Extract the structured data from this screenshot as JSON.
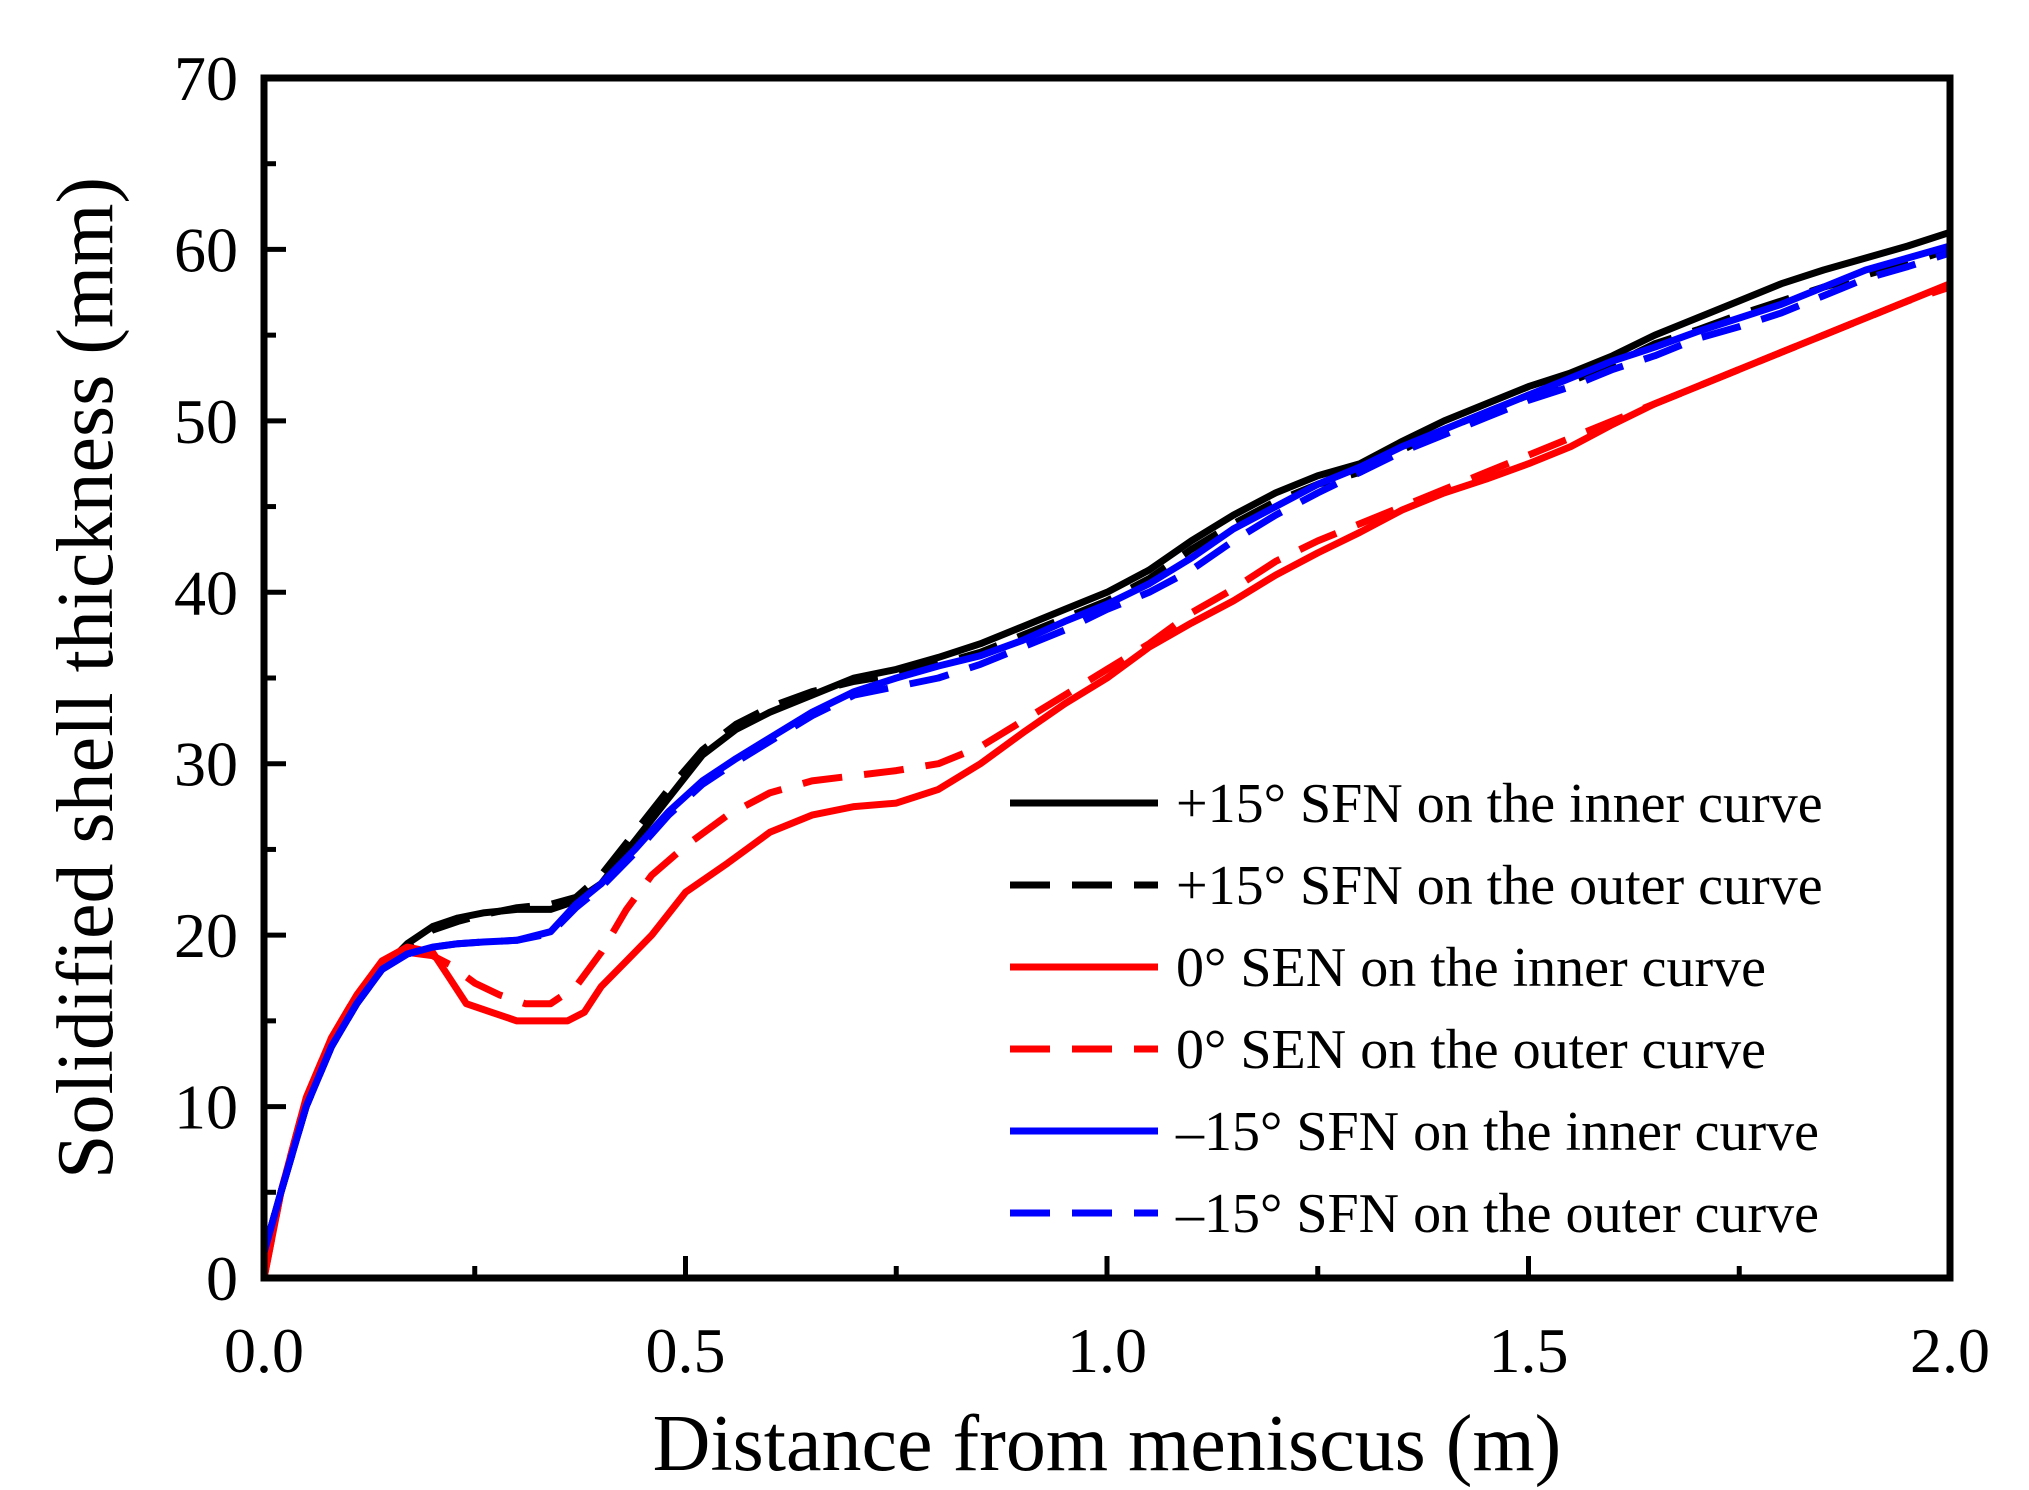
{
  "chart_data": {
    "type": "line",
    "title": "",
    "xlabel": "Distance from meniscus (m)",
    "ylabel": "Solidified shell thickness (mm)",
    "xlim": [
      0,
      2.0
    ],
    "ylim": [
      0,
      70
    ],
    "xticks": [
      0.0,
      0.5,
      1.0,
      1.5,
      2.0
    ],
    "xtick_labels": [
      "0.0",
      "0.5",
      "1.0",
      "1.5",
      "2.0"
    ],
    "yticks": [
      0,
      10,
      20,
      30,
      40,
      50,
      60,
      70
    ],
    "ytick_labels": [
      "0",
      "10",
      "20",
      "30",
      "40",
      "50",
      "60",
      "70"
    ],
    "grid": false,
    "legend_position": "bottom-right",
    "series": [
      {
        "name": "+15° SFN on the inner curve",
        "color": "#000000",
        "dash": "solid",
        "x": [
          0,
          0.02,
          0.05,
          0.08,
          0.11,
          0.14,
          0.17,
          0.2,
          0.23,
          0.26,
          0.3,
          0.34,
          0.37,
          0.4,
          0.44,
          0.48,
          0.52,
          0.56,
          0.6,
          0.65,
          0.7,
          0.75,
          0.8,
          0.85,
          0.9,
          0.95,
          1.0,
          1.05,
          1.1,
          1.15,
          1.2,
          1.25,
          1.3,
          1.35,
          1.4,
          1.45,
          1.5,
          1.55,
          1.6,
          1.65,
          1.7,
          1.75,
          1.8,
          1.85,
          1.9,
          1.95,
          2.0
        ],
        "y": [
          1.5,
          5,
          10,
          13.5,
          16,
          18,
          19.5,
          20.5,
          21,
          21.3,
          21.5,
          21.5,
          22,
          23,
          25.5,
          28,
          30.5,
          32,
          33,
          34,
          35,
          35.5,
          36.2,
          37,
          38,
          39,
          40,
          41.3,
          43,
          44.5,
          45.8,
          46.8,
          47.5,
          48.8,
          50,
          51,
          52,
          52.8,
          53.8,
          55,
          56,
          57,
          58,
          58.8,
          59.5,
          60.2,
          61
        ]
      },
      {
        "name": "+15° SFN on the outer curve",
        "color": "#000000",
        "dash": "dashed",
        "x": [
          0,
          0.02,
          0.05,
          0.08,
          0.11,
          0.14,
          0.17,
          0.2,
          0.23,
          0.26,
          0.3,
          0.34,
          0.37,
          0.4,
          0.44,
          0.48,
          0.52,
          0.56,
          0.6,
          0.65,
          0.7,
          0.75,
          0.8,
          0.85,
          0.9,
          0.95,
          1.0,
          1.05,
          1.1,
          1.15,
          1.2,
          1.25,
          1.3,
          1.35,
          1.4,
          1.45,
          1.5,
          1.55,
          1.6,
          1.65,
          1.7,
          1.75,
          1.8,
          1.85,
          1.9,
          1.95,
          2.0
        ],
        "y": [
          1.5,
          5,
          10,
          13.5,
          16,
          18,
          19.3,
          20.3,
          20.8,
          21.2,
          21.6,
          21.8,
          22.2,
          23.5,
          26,
          28.5,
          30.8,
          32.3,
          33.3,
          34.2,
          34.8,
          35.2,
          35.8,
          36.5,
          37.5,
          38.5,
          39.5,
          40.8,
          42.5,
          44,
          45.3,
          46.3,
          47,
          48.3,
          49.5,
          50.5,
          51.5,
          52.3,
          53.3,
          54.5,
          55.3,
          56.2,
          57,
          57.8,
          58.5,
          59.2,
          60
        ]
      },
      {
        "name": "0° SEN on the inner curve",
        "color": "#ff0000",
        "dash": "solid",
        "x": [
          0,
          0.02,
          0.05,
          0.08,
          0.11,
          0.14,
          0.17,
          0.2,
          0.22,
          0.24,
          0.27,
          0.3,
          0.33,
          0.36,
          0.38,
          0.4,
          0.43,
          0.46,
          0.5,
          0.55,
          0.6,
          0.65,
          0.7,
          0.75,
          0.8,
          0.85,
          0.9,
          0.95,
          1.0,
          1.05,
          1.1,
          1.15,
          1.2,
          1.25,
          1.3,
          1.35,
          1.4,
          1.45,
          1.5,
          1.55,
          1.6,
          1.65,
          1.7,
          1.75,
          1.8,
          1.85,
          1.9,
          1.95,
          2.0
        ],
        "y": [
          0,
          5,
          10.5,
          14,
          16.5,
          18.5,
          19.3,
          19,
          17.5,
          16,
          15.5,
          15,
          15,
          15,
          15.5,
          17,
          18.5,
          20,
          22.5,
          24.2,
          26,
          27,
          27.5,
          27.7,
          28.5,
          30,
          31.8,
          33.5,
          35,
          36.8,
          38.2,
          39.5,
          41,
          42.3,
          43.5,
          44.8,
          45.8,
          46.6,
          47.5,
          48.5,
          49.8,
          51,
          52,
          53,
          54,
          55,
          56,
          57,
          58
        ]
      },
      {
        "name": "0° SEN on the outer curve",
        "color": "#ff0000",
        "dash": "dashed",
        "x": [
          0,
          0.02,
          0.05,
          0.08,
          0.11,
          0.14,
          0.17,
          0.2,
          0.22,
          0.25,
          0.28,
          0.31,
          0.34,
          0.37,
          0.4,
          0.43,
          0.46,
          0.5,
          0.55,
          0.6,
          0.65,
          0.7,
          0.75,
          0.8,
          0.85,
          0.9,
          0.95,
          1.0,
          1.05,
          1.1,
          1.15,
          1.2,
          1.25,
          1.3,
          1.35,
          1.4,
          1.45,
          1.5,
          1.55,
          1.6,
          1.65,
          1.7,
          1.75,
          1.8,
          1.85,
          1.9,
          1.95,
          2.0
        ],
        "y": [
          0,
          5,
          10.5,
          14,
          16.5,
          18.3,
          19,
          18.8,
          18.3,
          17.2,
          16.5,
          16,
          16,
          17,
          19,
          21.5,
          23.5,
          25.2,
          27,
          28.3,
          29,
          29.3,
          29.6,
          30,
          31,
          32.5,
          34,
          35.5,
          37,
          38.8,
          40.2,
          41.8,
          43,
          44,
          45,
          46,
          47,
          48,
          49,
          50,
          51,
          52,
          53,
          54,
          55,
          56,
          57,
          57.8
        ]
      },
      {
        "name": "–15° SFN on the inner curve",
        "color": "#0000ff",
        "dash": "solid",
        "x": [
          0,
          0.02,
          0.05,
          0.08,
          0.11,
          0.14,
          0.17,
          0.2,
          0.23,
          0.26,
          0.3,
          0.34,
          0.37,
          0.4,
          0.44,
          0.48,
          0.52,
          0.56,
          0.6,
          0.65,
          0.7,
          0.75,
          0.8,
          0.85,
          0.9,
          0.95,
          1.0,
          1.05,
          1.1,
          1.15,
          1.2,
          1.25,
          1.3,
          1.35,
          1.4,
          1.45,
          1.5,
          1.55,
          1.6,
          1.65,
          1.7,
          1.75,
          1.8,
          1.85,
          1.9,
          1.95,
          2.0
        ],
        "y": [
          1.5,
          5,
          10,
          13.5,
          16,
          18,
          18.9,
          19.3,
          19.5,
          19.6,
          19.7,
          20.2,
          21.8,
          23,
          25,
          27.2,
          29,
          30.3,
          31.5,
          33,
          34.2,
          35,
          35.7,
          36.3,
          37.2,
          38.3,
          39.3,
          40.5,
          42,
          43.7,
          45,
          46.3,
          47.3,
          48.5,
          49.5,
          50.5,
          51.5,
          52.5,
          53.5,
          54.3,
          55.2,
          56,
          56.8,
          57.8,
          58.8,
          59.5,
          60.2
        ]
      },
      {
        "name": "–15° SFN on the outer curve",
        "color": "#0000ff",
        "dash": "dashed",
        "x": [
          0,
          0.02,
          0.05,
          0.08,
          0.11,
          0.14,
          0.17,
          0.2,
          0.23,
          0.26,
          0.3,
          0.34,
          0.37,
          0.4,
          0.44,
          0.48,
          0.52,
          0.56,
          0.6,
          0.65,
          0.7,
          0.75,
          0.8,
          0.85,
          0.9,
          0.95,
          1.0,
          1.05,
          1.1,
          1.15,
          1.2,
          1.25,
          1.3,
          1.35,
          1.4,
          1.45,
          1.5,
          1.55,
          1.6,
          1.65,
          1.7,
          1.75,
          1.8,
          1.85,
          1.9,
          1.95,
          2.0
        ],
        "y": [
          1.5,
          5,
          10,
          13.5,
          16,
          18,
          18.9,
          19.3,
          19.5,
          19.6,
          19.7,
          20.1,
          21.6,
          22.8,
          24.8,
          27,
          28.8,
          30.1,
          31.3,
          32.8,
          34,
          34.5,
          35,
          35.8,
          36.8,
          37.8,
          39,
          40,
          41.3,
          43,
          44.5,
          45.8,
          47,
          48.2,
          49.2,
          50.2,
          51.2,
          52,
          53,
          53.8,
          54.8,
          55.5,
          56.3,
          57.3,
          58.3,
          59,
          59.8
        ]
      }
    ]
  }
}
